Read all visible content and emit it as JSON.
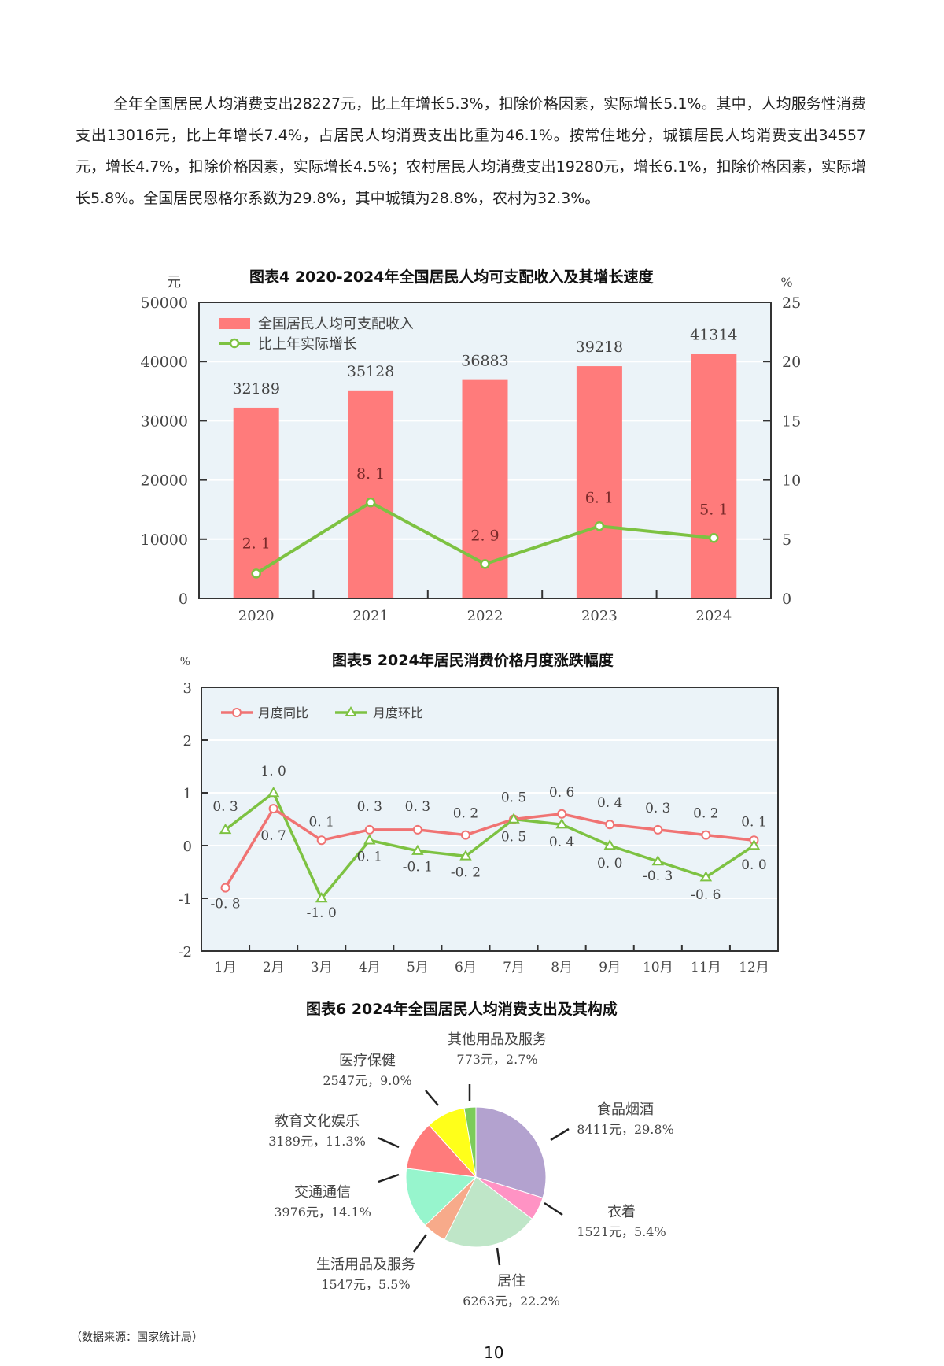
{
  "paragraph": {
    "text": "全年全国居民人均消费支出28227元，比上年增长5.3%，扣除价格因素，实际增长5.1%。其中，人均服务性消费支出13016元，比上年增长7.4%，占居民人均消费支出比重为46.1%。按常住地分，城镇居民人均消费支出34557元，增长4.7%，扣除价格因素，实际增长4.5%；农村居民人均消费支出19280元，增长6.1%，扣除价格因素，实际增长5.8%。全国居民恩格尔系数为29.8%，其中城镇为28.8%，农村为32.3%。"
  },
  "chart_data": [
    {
      "type": "bar",
      "title": "图表4 2020-2024年全国居民人均可支配收入及其增长速度",
      "categories": [
        "2020",
        "2021",
        "2022",
        "2023",
        "2024"
      ],
      "ylabel": "元",
      "y2label": "%",
      "ylim": [
        0,
        50000
      ],
      "y2lim": [
        0,
        25
      ],
      "yticks": [
        "0",
        "10000",
        "20000",
        "30000",
        "40000",
        "50000"
      ],
      "y2ticks": [
        "0",
        "5",
        "10",
        "15",
        "20",
        "25"
      ],
      "grid": true,
      "legend_position": "top-left",
      "series": [
        {
          "name": "全国居民人均可支配收入",
          "kind": "bar",
          "axis": "left",
          "color": "#ff7b7b",
          "values": [
            32189,
            35128,
            36883,
            39218,
            41314
          ],
          "labels": [
            "32189",
            "35128",
            "36883",
            "39218",
            "41314"
          ]
        },
        {
          "name": "比上年实际增长",
          "kind": "line",
          "axis": "right",
          "color": "#7dc242",
          "values": [
            2.1,
            8.1,
            2.9,
            6.1,
            5.1
          ],
          "labels": [
            "2. 1",
            "8. 1",
            "2. 9",
            "6. 1",
            "5. 1"
          ]
        }
      ]
    },
    {
      "type": "line",
      "title": "图表5 2024年居民消费价格月度涨跌幅度",
      "categories": [
        "1月",
        "2月",
        "3月",
        "4月",
        "5月",
        "6月",
        "7月",
        "8月",
        "9月",
        "10月",
        "11月",
        "12月"
      ],
      "ylabel": "%",
      "ylim": [
        -2,
        3
      ],
      "yticks": [
        "-2",
        "-1",
        "0",
        "1",
        "2",
        "3"
      ],
      "grid": true,
      "legend_position": "top-left",
      "series": [
        {
          "name": "月度同比",
          "color": "#f07373",
          "marker": "circle",
          "values": [
            -0.8,
            0.7,
            0.1,
            0.3,
            0.3,
            0.2,
            0.5,
            0.6,
            0.4,
            0.3,
            0.2,
            0.1
          ],
          "labels": [
            "-0. 8",
            "0. 7",
            "0. 1",
            "0. 3",
            "0. 3",
            "0. 2",
            "0. 5",
            "0. 6",
            "0. 4",
            "0. 3",
            "0. 2",
            "0. 1"
          ]
        },
        {
          "name": "月度环比",
          "color": "#7dc242",
          "marker": "triangle",
          "values": [
            0.3,
            1.0,
            -1.0,
            0.1,
            -0.1,
            -0.2,
            0.5,
            0.4,
            0.0,
            -0.3,
            -0.6,
            0.0
          ],
          "labels": [
            "0. 3",
            "1. 0",
            "-1. 0",
            "0. 1",
            "-0. 1",
            "-0. 2",
            "0. 5",
            "0. 4",
            "0. 0",
            "-0. 3",
            "-0. 6",
            "0. 0"
          ]
        }
      ]
    },
    {
      "type": "pie",
      "title": "图表6 2024年全国居民人均消费支出及其构成",
      "slices": [
        {
          "name": "食品烟酒",
          "amount": "8411元",
          "percent": 29.8,
          "label": "8411元，29.8%",
          "color": "#b3a2cf"
        },
        {
          "name": "衣着",
          "amount": "1521元",
          "percent": 5.4,
          "label": "1521元，5.4%",
          "color": "#ff93c4"
        },
        {
          "name": "居住",
          "amount": "6263元",
          "percent": 22.2,
          "label": "6263元，22.2%",
          "color": "#bfe6c8"
        },
        {
          "name": "生活用品及服务",
          "amount": "1547元",
          "percent": 5.5,
          "label": "1547元，5.5%",
          "color": "#f7aa8a"
        },
        {
          "name": "交通通信",
          "amount": "3976元",
          "percent": 14.1,
          "label": "3976元，14.1%",
          "color": "#97f5cd"
        },
        {
          "name": "教育文化娱乐",
          "amount": "3189元",
          "percent": 11.3,
          "label": "3189元，11.3%",
          "color": "#ff7b7b"
        },
        {
          "name": "医疗保健",
          "amount": "2547元",
          "percent": 9.0,
          "label": "2547元，9.0%",
          "color": "#ffff1a"
        },
        {
          "name": "其他用品及服务",
          "amount": "773元",
          "percent": 2.7,
          "label": "773元，2.7%",
          "color": "#7ccc5a"
        }
      ]
    }
  ],
  "footer": {
    "source": "（数据来源：国家统计局）",
    "page_number": "10"
  }
}
